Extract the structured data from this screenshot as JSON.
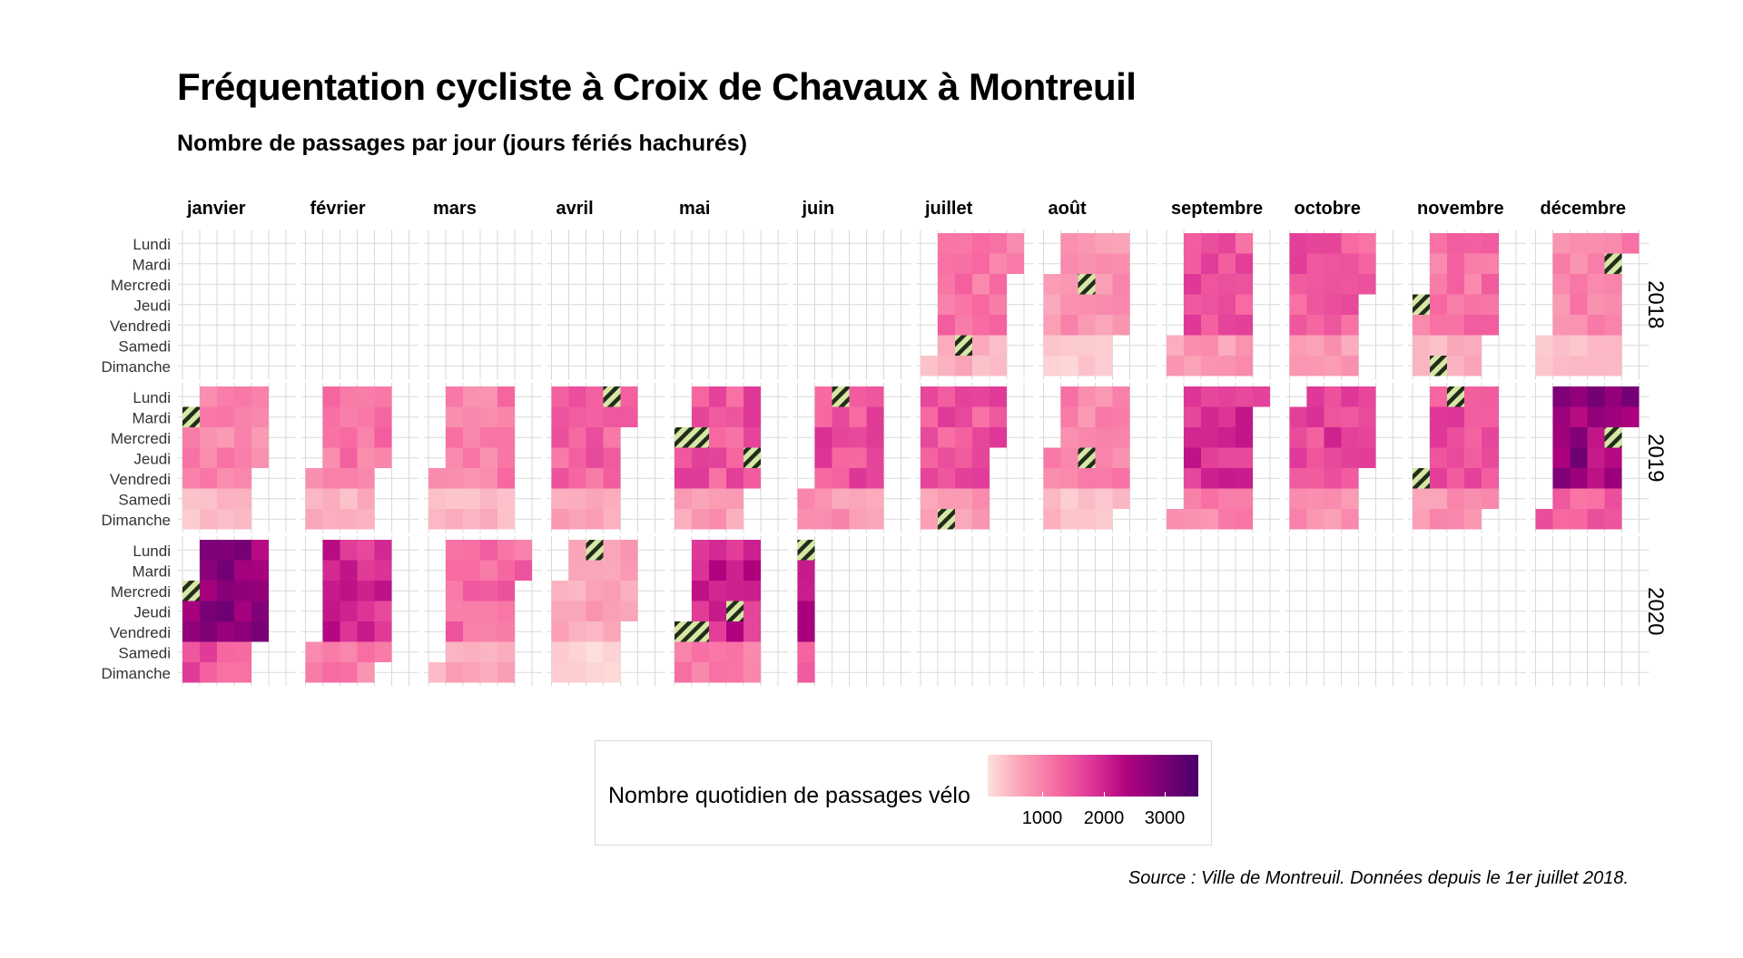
{
  "title": "Fréquentation cycliste à Croix de Chavaux à Montreuil",
  "subtitle": "Nombre de passages par jour (jours fériés hachurés)",
  "caption": "Source : Ville de Montreuil. Données depuis le 1er juillet 2018.",
  "legend": {
    "title": "Nombre quotidien de passages vélo",
    "ticks": [
      "1000",
      "2000",
      "3000"
    ]
  },
  "colors": {
    "scale": [
      "#fde0dd",
      "#fa9fb5",
      "#f768a1",
      "#dd3497",
      "#ae017e",
      "#7a0177",
      "#49006a"
    ],
    "hatch_fg": "#1f2d1a",
    "hatch_bg": "#d8e6a6",
    "grid": "#d9d9d9"
  },
  "chart_data": {
    "type": "heatmap",
    "months": [
      "janvier",
      "février",
      "mars",
      "avril",
      "mai",
      "juin",
      "juillet",
      "août",
      "septembre",
      "octobre",
      "novembre",
      "décembre"
    ],
    "weekdays": [
      "Lundi",
      "Mardi",
      "Mercredi",
      "Jeudi",
      "Vendredi",
      "Samedi",
      "Dimanche"
    ],
    "years": [
      "2018",
      "2019",
      "2020"
    ],
    "value_range": [
      500,
      3800
    ],
    "data_start": "2018-07-01",
    "data_end": "2020-06-07",
    "holidays": [
      "2018-07-14",
      "2018-08-15",
      "2018-11-01",
      "2018-11-11",
      "2018-12-25",
      "2019-01-01",
      "2019-04-22",
      "2019-05-01",
      "2019-05-08",
      "2019-05-30",
      "2019-06-10",
      "2019-07-14",
      "2019-08-15",
      "2019-11-01",
      "2019-11-11",
      "2019-12-25",
      "2020-01-01",
      "2020-04-13",
      "2020-05-01",
      "2020-05-08",
      "2020-05-21",
      "2020-06-01"
    ],
    "monthly_base": {
      "2018": [
        null,
        null,
        null,
        null,
        null,
        null,
        1500,
        1150,
        1800,
        1750,
        1500,
        1300
      ],
      "2019": [
        1300,
        1450,
        1400,
        1650,
        1800,
        1900,
        1800,
        1300,
        2200,
        2000,
        1900,
        2900
      ],
      "2020": [
        3000,
        2250,
        1600,
        1000,
        2300,
        2800
      ]
    },
    "weekend_factor": 0.6
  }
}
